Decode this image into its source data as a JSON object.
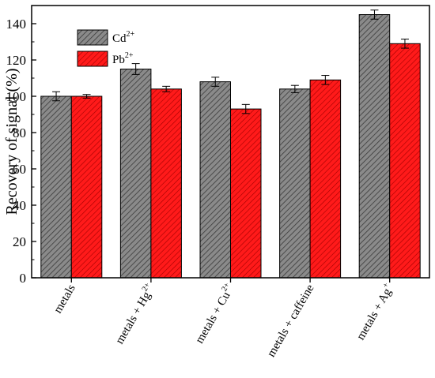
{
  "chart_data": {
    "type": "bar",
    "title": "",
    "xlabel": "",
    "ylabel": "Recovery of signal (%)",
    "ylim": [
      0,
      150
    ],
    "yticks": [
      0,
      20,
      40,
      60,
      80,
      100,
      120,
      140
    ],
    "legend_position": "top-left",
    "grid": false,
    "categories": [
      {
        "base": "metals",
        "sup": ""
      },
      {
        "base": "metals + Hg",
        "sup": "2+"
      },
      {
        "base": "metals + Cu",
        "sup": "2+"
      },
      {
        "base": "metals  + caffeine",
        "sup": ""
      },
      {
        "base": "metals + Ag",
        "sup": "+"
      }
    ],
    "series": [
      {
        "label_base": "Cd",
        "label_sup": "2+",
        "color": "#8a8a8a",
        "hatch": "#3a3a3a",
        "values": [
          100,
          115,
          108,
          104,
          145
        ],
        "errors": [
          2.5,
          3,
          2.5,
          2,
          2.5
        ]
      },
      {
        "label_base": "Pb",
        "label_sup": "2+",
        "color": "#ff1a1a",
        "hatch": "#a00000",
        "values": [
          100,
          104,
          93,
          109,
          129
        ],
        "errors": [
          1,
          1.5,
          2.5,
          2.5,
          2.5
        ]
      }
    ]
  }
}
